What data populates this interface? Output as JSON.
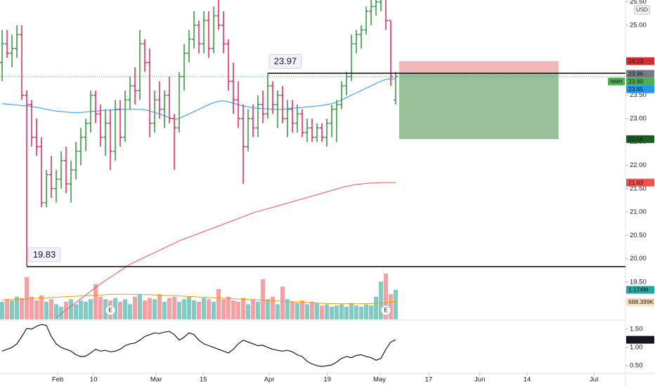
{
  "chart_data": {
    "type": "ohlc",
    "currency": "USD",
    "symbol": "NMH",
    "up_color": "#3a9b47",
    "down_color": "#e0306a",
    "grid": false,
    "bars": [
      [
        24.2,
        24.9,
        23.8,
        24.6
      ],
      [
        24.6,
        24.9,
        24.3,
        24.4
      ],
      [
        24.4,
        24.8,
        24.1,
        24.5
      ],
      [
        24.5,
        25.0,
        24.3,
        24.8
      ],
      [
        24.8,
        25.0,
        23.4,
        23.5
      ],
      [
        23.5,
        23.6,
        19.83,
        23.3
      ],
      [
        23.3,
        23.4,
        22.4,
        22.6
      ],
      [
        22.6,
        23.0,
        22.2,
        22.4
      ],
      [
        22.4,
        22.6,
        21.1,
        21.2
      ],
      [
        21.2,
        21.9,
        21.1,
        21.8
      ],
      [
        21.8,
        22.2,
        21.3,
        21.5
      ],
      [
        21.5,
        21.9,
        21.2,
        21.7
      ],
      [
        21.7,
        22.3,
        21.5,
        22.1
      ],
      [
        22.1,
        22.4,
        21.4,
        21.6
      ],
      [
        21.6,
        22.1,
        21.2,
        21.9
      ],
      [
        21.9,
        22.5,
        21.7,
        22.3
      ],
      [
        22.3,
        22.8,
        22.0,
        22.6
      ],
      [
        22.6,
        23.0,
        22.3,
        22.9
      ],
      [
        22.9,
        23.6,
        22.7,
        23.5
      ],
      [
        23.5,
        23.6,
        22.9,
        23.1
      ],
      [
        23.1,
        23.3,
        22.4,
        22.6
      ],
      [
        22.6,
        23.2,
        22.2,
        22.9
      ],
      [
        22.9,
        23.2,
        21.9,
        22.3
      ],
      [
        22.3,
        23.4,
        22.1,
        23.2
      ],
      [
        23.2,
        23.4,
        22.4,
        22.6
      ],
      [
        22.6,
        23.6,
        22.5,
        23.4
      ],
      [
        23.4,
        23.9,
        23.2,
        23.7
      ],
      [
        23.7,
        24.1,
        23.3,
        23.6
      ],
      [
        23.6,
        24.9,
        23.4,
        24.6
      ],
      [
        24.6,
        24.7,
        24.0,
        24.2
      ],
      [
        24.2,
        24.5,
        22.6,
        22.9
      ],
      [
        22.9,
        23.6,
        22.7,
        23.4
      ],
      [
        23.4,
        23.8,
        23.0,
        23.2
      ],
      [
        23.2,
        23.6,
        22.8,
        23.5
      ],
      [
        23.5,
        23.9,
        22.9,
        23.0
      ],
      [
        23.0,
        23.1,
        21.9,
        22.8
      ],
      [
        22.8,
        24.0,
        22.7,
        23.9
      ],
      [
        23.9,
        24.6,
        23.6,
        24.4
      ],
      [
        24.4,
        24.9,
        24.2,
        24.7
      ],
      [
        24.7,
        25.3,
        24.5,
        25.0
      ],
      [
        25.0,
        25.1,
        24.4,
        24.6
      ],
      [
        24.6,
        25.3,
        24.4,
        25.1
      ],
      [
        25.1,
        25.3,
        24.3,
        24.5
      ],
      [
        24.5,
        25.4,
        24.4,
        25.2
      ],
      [
        25.2,
        25.6,
        24.9,
        25.0
      ],
      [
        25.0,
        25.3,
        24.4,
        24.6
      ],
      [
        24.6,
        24.7,
        23.6,
        23.8
      ],
      [
        23.8,
        24.2,
        23.1,
        23.4
      ],
      [
        23.4,
        23.8,
        22.8,
        23.0
      ],
      [
        23.0,
        23.3,
        21.6,
        22.4
      ],
      [
        22.4,
        23.2,
        22.3,
        23.0
      ],
      [
        23.0,
        23.3,
        22.6,
        22.8
      ],
      [
        22.8,
        23.5,
        22.6,
        23.3
      ],
      [
        23.3,
        23.6,
        22.9,
        23.1
      ],
      [
        23.1,
        23.97,
        23.0,
        23.7
      ],
      [
        23.7,
        23.8,
        23.1,
        23.3
      ],
      [
        23.3,
        23.6,
        22.8,
        23.5
      ],
      [
        23.5,
        23.7,
        22.9,
        23.0
      ],
      [
        23.0,
        23.4,
        22.6,
        23.2
      ],
      [
        23.2,
        23.4,
        22.7,
        22.9
      ],
      [
        22.9,
        23.3,
        22.7,
        23.1
      ],
      [
        23.1,
        23.2,
        22.6,
        22.7
      ],
      [
        22.7,
        23.0,
        22.5,
        22.8
      ],
      [
        22.8,
        23.0,
        22.5,
        22.6
      ],
      [
        22.6,
        22.9,
        22.5,
        22.8
      ],
      [
        22.8,
        22.9,
        22.5,
        22.6
      ],
      [
        22.6,
        23.0,
        22.4,
        22.9
      ],
      [
        22.9,
        23.3,
        22.6,
        23.2
      ],
      [
        23.2,
        23.4,
        22.5,
        23.3
      ],
      [
        23.3,
        23.8,
        23.2,
        23.7
      ],
      [
        23.7,
        24.0,
        23.5,
        23.9
      ],
      [
        23.9,
        24.8,
        23.8,
        24.6
      ],
      [
        24.6,
        24.9,
        24.4,
        24.8
      ],
      [
        24.8,
        25.0,
        24.5,
        24.9
      ],
      [
        24.9,
        25.4,
        24.8,
        25.3
      ],
      [
        25.3,
        25.6,
        25.0,
        25.4
      ],
      [
        25.4,
        25.8,
        25.2,
        25.5
      ],
      [
        25.5,
        25.9,
        25.3,
        25.6
      ],
      [
        25.6,
        25.7,
        24.9,
        25.1
      ],
      [
        25.1,
        25.1,
        23.7,
        23.9
      ],
      [
        23.4,
        24.0,
        23.3,
        23.9
      ]
    ],
    "xlim": [
      -0.43,
      126.71
    ],
    "xticks": [
      {
        "value": 11.3,
        "label": "Feb"
      },
      {
        "value": 18.6,
        "label": "10"
      },
      {
        "value": 31.3,
        "label": "Mar"
      },
      {
        "value": 40.9,
        "label": "15"
      },
      {
        "value": 54.3,
        "label": "Apr"
      },
      {
        "value": 66.1,
        "label": "19"
      },
      {
        "value": 76.7,
        "label": "May"
      },
      {
        "value": 86.7,
        "label": "17"
      },
      {
        "value": 97.1,
        "label": "Jun"
      },
      {
        "value": 106.7,
        "label": "14"
      },
      {
        "value": 120.3,
        "label": "Jul"
      }
    ],
    "ylim": [
      18.7,
      25.54
    ],
    "yticks": [
      {
        "value": 25.5,
        "label": "25.50"
      },
      {
        "value": 25,
        "label": "25.00"
      },
      {
        "value": 23.5,
        "label": "23.50"
      },
      {
        "value": 23,
        "label": "23.00"
      },
      {
        "value": 22.5,
        "label": "22.50"
      },
      {
        "value": 22,
        "label": "22.00"
      },
      {
        "value": 21.5,
        "label": "21.50"
      },
      {
        "value": 21,
        "label": "21.00"
      },
      {
        "value": 20.5,
        "label": "20.50"
      },
      {
        "value": 20,
        "label": "20.00"
      },
      {
        "value": 19.5,
        "label": "19.50"
      }
    ],
    "last_price": {
      "value": 23.9,
      "label": "23.90",
      "color": "#4caf50"
    },
    "levels": [
      23.97,
      19.83
    ],
    "position": {
      "stop": 24.23,
      "entry": 23.96,
      "target": 22.56,
      "stop_color": "#e89a9a",
      "target_color": "#5f9e63",
      "stop_label_color": "#d32f2f",
      "entry_color": "#787b86",
      "target_label_color": "#1b5e20"
    },
    "ma_fast": {
      "color": "#2196f3",
      "values": [
        23.32,
        23.31,
        23.3,
        23.29,
        23.28,
        23.27,
        23.26,
        23.24,
        23.22,
        23.2,
        23.18,
        23.16,
        23.15,
        23.14,
        23.13,
        23.13,
        23.13,
        23.14,
        23.15,
        23.16,
        23.17,
        23.18,
        23.18,
        23.19,
        23.19,
        23.2,
        23.2,
        23.2,
        23.2,
        23.19,
        23.16,
        23.13,
        23.1,
        23.06,
        23.02,
        22.99,
        23.0,
        23.05,
        23.1,
        23.15,
        23.2,
        23.25,
        23.3,
        23.34,
        23.37,
        23.38,
        23.36,
        23.33,
        23.3,
        23.27,
        23.25,
        23.23,
        23.22,
        23.21,
        23.21,
        23.2,
        23.2,
        23.2,
        23.21,
        23.22,
        23.23,
        23.24,
        23.25,
        23.26,
        23.27,
        23.28,
        23.3,
        23.32,
        23.35,
        23.4,
        23.45,
        23.5,
        23.55,
        23.6,
        23.65,
        23.7,
        23.75,
        23.8,
        23.84,
        23.85,
        23.85
      ]
    },
    "ma_slow": {
      "color": "#ef5350",
      "values": [
        null,
        null,
        null,
        null,
        null,
        null,
        null,
        null,
        null,
        null,
        null,
        18.74,
        18.82,
        18.9,
        18.98,
        19.06,
        19.14,
        19.22,
        19.3,
        19.38,
        19.46,
        19.53,
        19.6,
        19.67,
        19.74,
        19.81,
        19.88,
        19.93,
        19.98,
        20.03,
        20.08,
        20.13,
        20.18,
        20.23,
        20.28,
        20.33,
        20.38,
        20.42,
        20.46,
        20.5,
        20.54,
        20.58,
        20.62,
        20.66,
        20.7,
        20.74,
        20.78,
        20.82,
        20.86,
        20.9,
        20.94,
        20.98,
        21.01,
        21.04,
        21.07,
        21.1,
        21.13,
        21.16,
        21.19,
        21.22,
        21.25,
        21.28,
        21.31,
        21.34,
        21.37,
        21.4,
        21.43,
        21.46,
        21.49,
        21.52,
        21.55,
        21.57,
        21.59,
        21.6,
        21.61,
        21.62,
        21.62,
        21.63,
        21.63,
        21.63,
        21.63
      ]
    },
    "volume": {
      "ylim": [
        0,
        12.7
      ],
      "up_color": "#80cbc4",
      "down_color": "#f5a0a4",
      "last_color": "#26a69a",
      "values": [
        0.7,
        0.8,
        0.75,
        0.9,
        0.85,
        1.68,
        0.9,
        0.75,
        0.95,
        0.7,
        0.8,
        0.6,
        0.5,
        0.7,
        0.8,
        0.6,
        0.75,
        0.7,
        0.8,
        1.4,
        0.9,
        0.8,
        0.75,
        0.85,
        0.7,
        0.8,
        0.6,
        0.9,
        1.0,
        0.75,
        0.85,
        0.8,
        1.0,
        0.7,
        0.85,
        0.9,
        0.7,
        0.8,
        0.9,
        0.75,
        0.7,
        0.85,
        0.8,
        0.7,
        1.2,
        0.8,
        0.9,
        0.75,
        0.7,
        0.85,
        0.6,
        0.8,
        0.7,
        1.6,
        0.8,
        0.9,
        0.6,
        1.3,
        0.8,
        0.7,
        0.65,
        0.75,
        0.6,
        0.7,
        0.65,
        0.55,
        0.6,
        0.5,
        0.55,
        0.6,
        0.5,
        0.65,
        0.55,
        0.5,
        0.6,
        0.55,
        0.9,
        1.5,
        1.82,
        1.0,
        1.174
      ],
      "last_label": "1.174M",
      "ma_color": "#ff9800",
      "ma_values": [
        0.78,
        0.78,
        0.79,
        0.79,
        0.8,
        0.82,
        0.83,
        0.84,
        0.85,
        0.86,
        0.87,
        0.88,
        0.89,
        0.9,
        0.91,
        0.92,
        0.93,
        0.94,
        0.95,
        0.96,
        0.97,
        0.98,
        0.99,
        1.0,
        1.0,
        1.0,
        1.0,
        0.99,
        0.99,
        0.98,
        0.98,
        0.97,
        0.96,
        0.95,
        0.95,
        0.94,
        0.93,
        0.92,
        0.91,
        0.9,
        0.89,
        0.88,
        0.87,
        0.86,
        0.85,
        0.84,
        0.83,
        0.82,
        0.81,
        0.8,
        0.79,
        0.78,
        0.77,
        0.76,
        0.75,
        0.74,
        0.73,
        0.72,
        0.71,
        0.7,
        0.69,
        0.68,
        0.67,
        0.66,
        0.65,
        0.64,
        0.63,
        0.63,
        0.62,
        0.62,
        0.62,
        0.62,
        0.62,
        0.62,
        0.63,
        0.63,
        0.64,
        0.65,
        0.67,
        0.68,
        0.688399
      ],
      "ma_last_label": "688.399K"
    },
    "earnings": {
      "label": "E",
      "bars": [
        22,
        78
      ]
    },
    "oscillator": {
      "color": "#131722",
      "ylim": [
        0.04,
        1.77
      ],
      "yticks": [
        {
          "value": 1.5,
          "label": "1.50"
        },
        {
          "value": 1,
          "label": "1.00"
        },
        {
          "value": 0.5,
          "label": "0.50"
        }
      ],
      "values": [
        0.9,
        0.95,
        1.0,
        1.1,
        1.3,
        1.52,
        1.5,
        1.58,
        1.63,
        1.6,
        1.3,
        1.1,
        1.0,
        0.95,
        0.9,
        0.8,
        0.75,
        0.76,
        0.85,
        0.95,
        0.9,
        0.92,
        0.88,
        0.9,
        0.95,
        1.05,
        1.1,
        1.12,
        1.2,
        1.3,
        1.35,
        1.4,
        1.38,
        1.42,
        1.44,
        1.35,
        1.2,
        1.28,
        1.4,
        1.35,
        1.2,
        1.1,
        1.05,
        1.0,
        0.95,
        0.9,
        0.85,
        0.95,
        1.1,
        1.2,
        1.15,
        1.1,
        1.05,
        1.06,
        1.0,
        0.95,
        0.92,
        0.9,
        0.92,
        0.88,
        0.8,
        0.75,
        0.62,
        0.55,
        0.5,
        0.48,
        0.5,
        0.52,
        0.6,
        0.7,
        0.75,
        0.72,
        0.78,
        0.8,
        0.75,
        0.72,
        0.65,
        0.7,
        0.95,
        1.15,
        1.21
      ]
    }
  }
}
